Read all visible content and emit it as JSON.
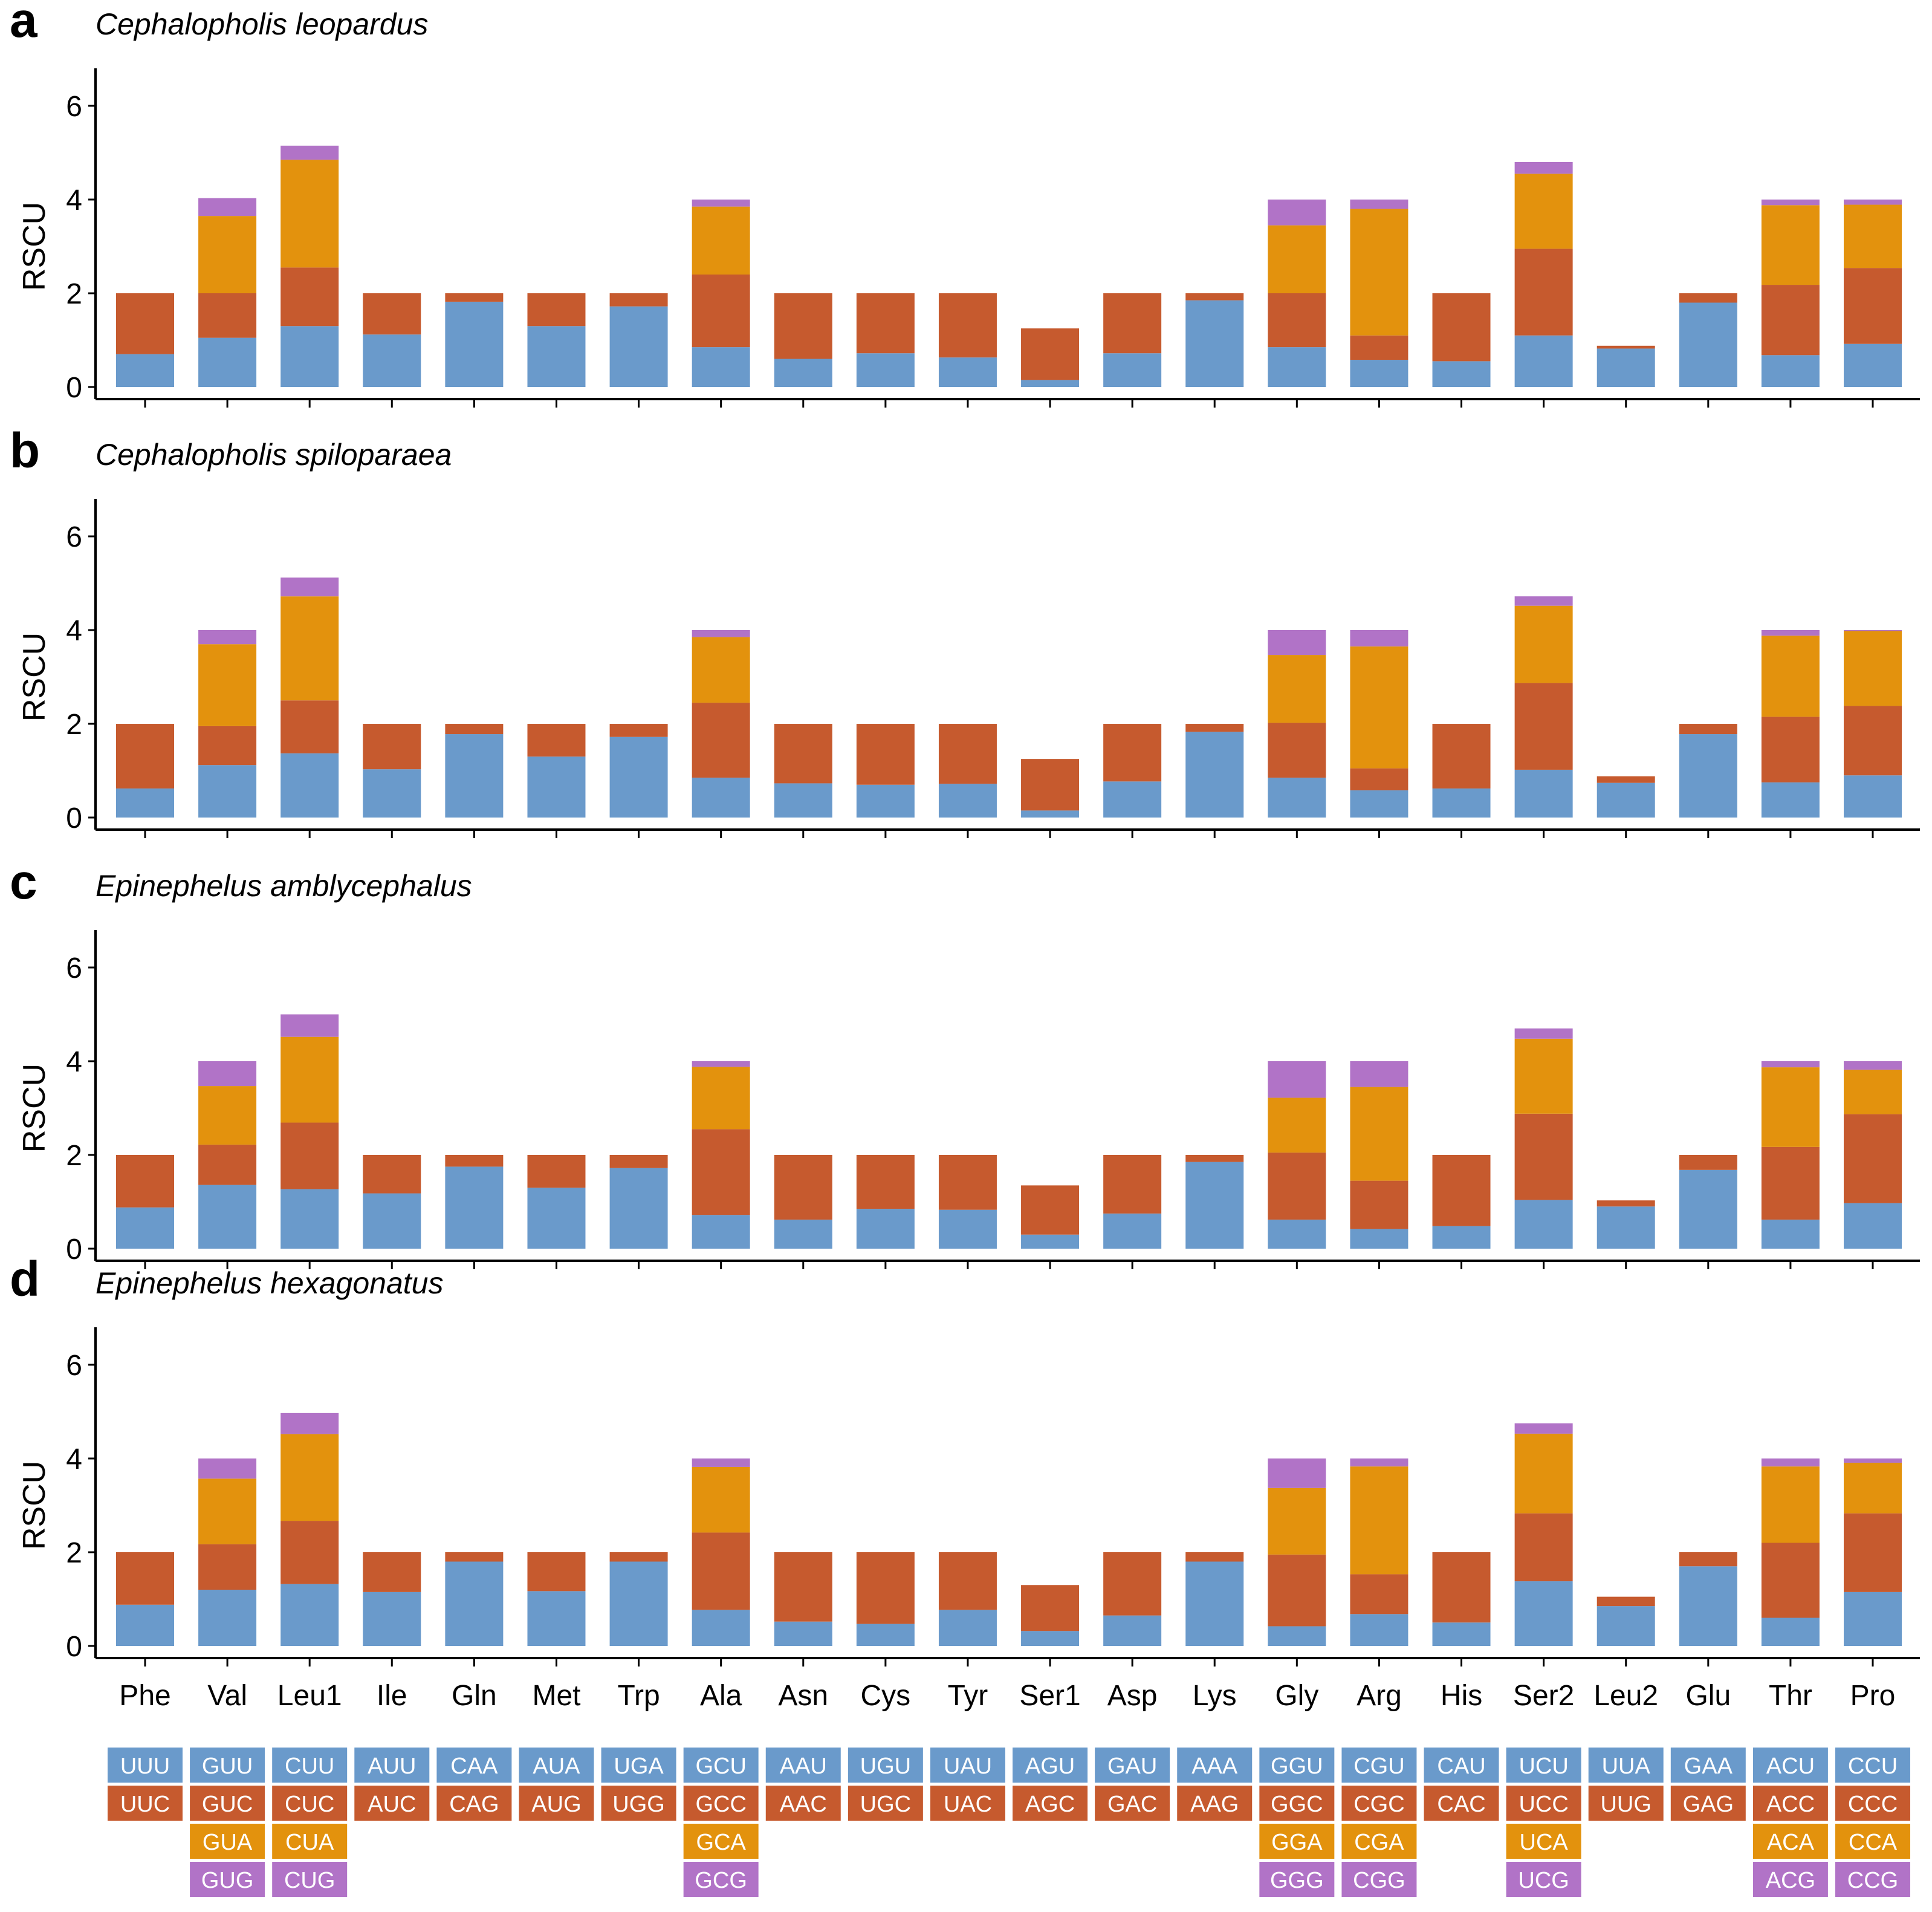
{
  "colors": [
    "#6a9acb",
    "#c65a2e",
    "#e3920d",
    "#b173c7"
  ],
  "chart_data": {
    "type": "bar",
    "stacked": true,
    "ylabel": "RSCU",
    "yticks": [
      0,
      2,
      4,
      6
    ],
    "ylim": [
      0,
      6.8
    ],
    "categories": [
      "Phe",
      "Val",
      "Leu1",
      "Ile",
      "Gln",
      "Met",
      "Trp",
      "Ala",
      "Asn",
      "Cys",
      "Tyr",
      "Ser1",
      "Asp",
      "Lys",
      "Gly",
      "Arg",
      "His",
      "Ser2",
      "Leu2",
      "Glu",
      "Thr",
      "Pro"
    ],
    "panels": [
      {
        "label": "a",
        "title": "Cephalopholis leopardus",
        "segments": [
          [
            0.7,
            1.3
          ],
          [
            1.05,
            0.95,
            1.65,
            0.38
          ],
          [
            1.3,
            1.25,
            2.3,
            0.3
          ],
          [
            1.12,
            0.88
          ],
          [
            1.82,
            0.18
          ],
          [
            1.3,
            0.7
          ],
          [
            1.72,
            0.28
          ],
          [
            0.85,
            1.55,
            1.45,
            0.15
          ],
          [
            0.6,
            1.4
          ],
          [
            0.72,
            1.28
          ],
          [
            0.63,
            1.37
          ],
          [
            0.15,
            1.1
          ],
          [
            0.72,
            1.28
          ],
          [
            1.85,
            0.15
          ],
          [
            0.85,
            1.15,
            1.45,
            0.55
          ],
          [
            0.58,
            0.52,
            2.7,
            0.2
          ],
          [
            0.55,
            1.45
          ],
          [
            1.1,
            1.85,
            1.6,
            0.25
          ],
          [
            0.82,
            0.06
          ],
          [
            1.8,
            0.2
          ],
          [
            0.68,
            1.5,
            1.7,
            0.12
          ],
          [
            0.92,
            1.62,
            1.35,
            0.11
          ]
        ]
      },
      {
        "label": "b",
        "title": "Cephalopholis spiloparaea",
        "segments": [
          [
            0.62,
            1.38
          ],
          [
            1.12,
            0.83,
            1.75,
            0.3
          ],
          [
            1.37,
            1.13,
            2.22,
            0.4
          ],
          [
            1.03,
            0.97
          ],
          [
            1.78,
            0.22
          ],
          [
            1.3,
            0.7
          ],
          [
            1.72,
            0.28
          ],
          [
            0.85,
            1.6,
            1.4,
            0.15
          ],
          [
            0.73,
            1.27
          ],
          [
            0.7,
            1.3
          ],
          [
            0.72,
            1.28
          ],
          [
            0.15,
            1.1
          ],
          [
            0.77,
            1.23
          ],
          [
            1.83,
            0.17
          ],
          [
            0.85,
            1.17,
            1.45,
            0.53
          ],
          [
            0.58,
            0.47,
            2.6,
            0.35
          ],
          [
            0.62,
            1.38
          ],
          [
            1.02,
            1.85,
            1.65,
            0.2
          ],
          [
            0.74,
            0.14
          ],
          [
            1.78,
            0.22
          ],
          [
            0.75,
            1.4,
            1.73,
            0.12
          ],
          [
            0.9,
            1.48,
            1.6,
            0.02
          ]
        ]
      },
      {
        "label": "c",
        "title": "Epinephelus amblycephalus",
        "segments": [
          [
            0.88,
            1.12
          ],
          [
            1.36,
            0.86,
            1.25,
            0.53
          ],
          [
            1.27,
            1.42,
            1.83,
            0.48
          ],
          [
            1.18,
            0.82
          ],
          [
            1.75,
            0.25
          ],
          [
            1.3,
            0.7
          ],
          [
            1.72,
            0.28
          ],
          [
            0.72,
            1.83,
            1.33,
            0.12
          ],
          [
            0.62,
            1.38
          ],
          [
            0.85,
            1.15
          ],
          [
            0.83,
            1.17
          ],
          [
            0.3,
            1.05
          ],
          [
            0.75,
            1.25
          ],
          [
            1.85,
            0.15
          ],
          [
            0.62,
            1.43,
            1.17,
            0.78
          ],
          [
            0.42,
            1.03,
            2.0,
            0.55
          ],
          [
            0.48,
            1.52
          ],
          [
            1.04,
            1.84,
            1.6,
            0.22
          ],
          [
            0.9,
            0.13
          ],
          [
            1.68,
            0.32
          ],
          [
            0.62,
            1.55,
            1.7,
            0.13
          ],
          [
            0.97,
            1.9,
            0.95,
            0.18
          ]
        ]
      },
      {
        "label": "d",
        "title": "Epinephelus hexagonatus",
        "segments": [
          [
            0.88,
            1.12
          ],
          [
            1.2,
            0.97,
            1.4,
            0.43
          ],
          [
            1.32,
            1.35,
            1.85,
            0.45
          ],
          [
            1.15,
            0.85
          ],
          [
            1.8,
            0.2
          ],
          [
            1.17,
            0.83
          ],
          [
            1.8,
            0.2
          ],
          [
            0.77,
            1.65,
            1.4,
            0.18
          ],
          [
            0.52,
            1.48
          ],
          [
            0.47,
            1.53
          ],
          [
            0.77,
            1.23
          ],
          [
            0.32,
            0.98
          ],
          [
            0.65,
            1.35
          ],
          [
            1.8,
            0.2
          ],
          [
            0.42,
            1.53,
            1.42,
            0.63
          ],
          [
            0.68,
            0.85,
            2.3,
            0.17
          ],
          [
            0.5,
            1.5
          ],
          [
            1.38,
            1.45,
            1.7,
            0.22
          ],
          [
            0.85,
            0.2
          ],
          [
            1.7,
            0.3
          ],
          [
            0.6,
            1.6,
            1.63,
            0.17
          ],
          [
            1.15,
            1.68,
            1.08,
            0.09
          ]
        ]
      }
    ]
  },
  "codons": [
    [
      "UUU",
      "UUC"
    ],
    [
      "GUU",
      "GUC",
      "GUA",
      "GUG"
    ],
    [
      "CUU",
      "CUC",
      "CUA",
      "CUG"
    ],
    [
      "AUU",
      "AUC"
    ],
    [
      "CAA",
      "CAG"
    ],
    [
      "AUA",
      "AUG"
    ],
    [
      "UGA",
      "UGG"
    ],
    [
      "GCU",
      "GCC",
      "GCA",
      "GCG"
    ],
    [
      "AAU",
      "AAC"
    ],
    [
      "UGU",
      "UGC"
    ],
    [
      "UAU",
      "UAC"
    ],
    [
      "AGU",
      "AGC"
    ],
    [
      "GAU",
      "GAC"
    ],
    [
      "AAA",
      "AAG"
    ],
    [
      "GGU",
      "GGC",
      "GGA",
      "GGG"
    ],
    [
      "CGU",
      "CGC",
      "CGA",
      "CGG"
    ],
    [
      "CAU",
      "CAC"
    ],
    [
      "UCU",
      "UCC",
      "UCA",
      "UCG"
    ],
    [
      "UUA",
      "UUG"
    ],
    [
      "GAA",
      "GAG"
    ],
    [
      "ACU",
      "ACC",
      "ACA",
      "ACG"
    ],
    [
      "CCU",
      "CCC",
      "CCA",
      "CCG"
    ]
  ]
}
